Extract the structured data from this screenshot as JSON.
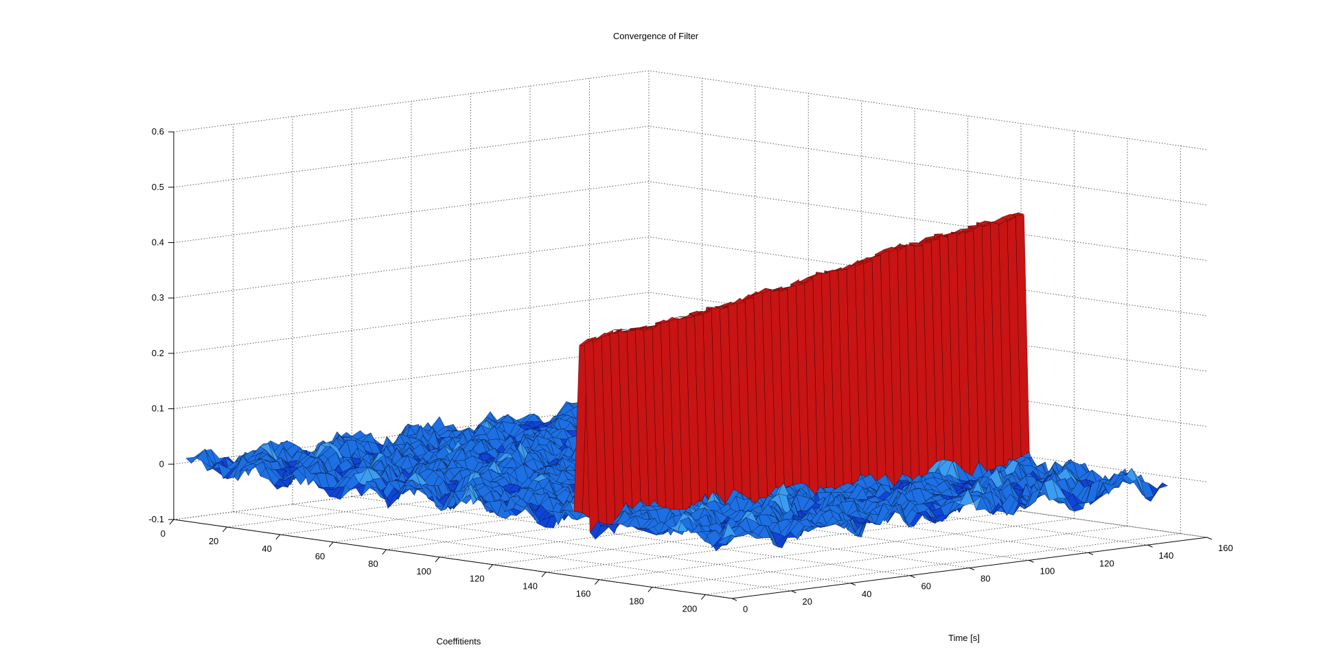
{
  "chart_data": {
    "type": "surface",
    "title": "Convergence of Filter",
    "xlabel": "Coeffitients",
    "ylabel": "Time [s]",
    "zlabel": "",
    "xlim": [
      0,
      210
    ],
    "ylim": [
      0,
      160
    ],
    "zlim": [
      -0.1,
      0.6
    ],
    "x_ticks": [
      0,
      20,
      40,
      60,
      80,
      100,
      120,
      140,
      160,
      180,
      200
    ],
    "y_ticks": [
      0,
      20,
      40,
      60,
      80,
      100,
      120,
      140,
      160
    ],
    "z_ticks": [
      -0.1,
      0,
      0.1,
      0.2,
      0.3,
      0.4,
      0.5,
      0.6
    ],
    "x_tick_labels": [
      "0",
      "20",
      "40",
      "60",
      "80",
      "100",
      "120",
      "140",
      "160",
      "180",
      "200"
    ],
    "y_tick_labels": [
      "0",
      "20",
      "40",
      "60",
      "80",
      "100",
      "120",
      "140",
      "160"
    ],
    "z_tick_labels": [
      "-0.1",
      "0",
      "0.1",
      "0.2",
      "0.3",
      "0.4",
      "0.5",
      "0.6"
    ],
    "grid": true,
    "colormap": [
      "#0000bb",
      "#1a6fe0",
      "#4aa8f0",
      "#cc1111",
      "#e02020"
    ],
    "background_noise_amplitude": 0.03,
    "peak": {
      "coefficient": 150,
      "time": [
        0,
        150
      ],
      "values": [
        0.31,
        0.32,
        0.33,
        0.33,
        0.33,
        0.34,
        0.34,
        0.35,
        0.35,
        0.36,
        0.37,
        0.37,
        0.38,
        0.39,
        0.39,
        0.4,
        0.41,
        0.42,
        0.42,
        0.43,
        0.43,
        0.44,
        0.44,
        0.45
      ]
    }
  }
}
